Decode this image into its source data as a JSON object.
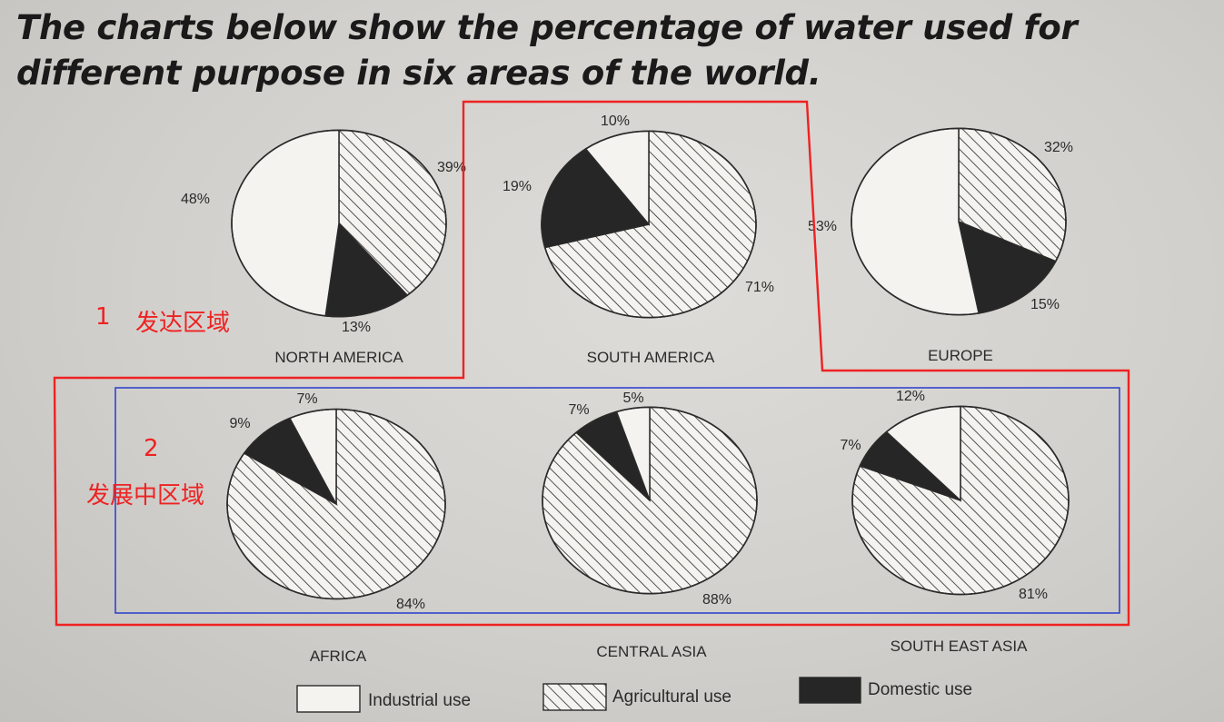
{
  "title": "The charts below show the percentage of water used for different purpose in six areas of the world.",
  "legend": [
    {
      "label": "Industrial use",
      "pattern": "plain",
      "color": "#f4f3f0"
    },
    {
      "label": "Agricultural use",
      "pattern": "hatched",
      "color": "#f4f3f0"
    },
    {
      "label": "Domestic use",
      "pattern": "solid",
      "color": "#262626"
    }
  ],
  "annotations": {
    "group1_number": "1",
    "group1_label": "发达区域",
    "group2_number": "2",
    "group2_label": "发展中区域",
    "box_red": "#ee2222",
    "box_blue": "#3344cc"
  },
  "chart_data": [
    {
      "type": "pie",
      "region": "NORTH AMERICA",
      "categories": [
        "Industrial use",
        "Agricultural use",
        "Domestic use"
      ],
      "values": [
        48,
        39,
        13
      ],
      "labels": [
        "48%",
        "39%",
        "13%"
      ]
    },
    {
      "type": "pie",
      "region": "SOUTH AMERICA",
      "categories": [
        "Industrial use",
        "Agricultural use",
        "Domestic use"
      ],
      "values": [
        10,
        71,
        19
      ],
      "labels": [
        "10%",
        "71%",
        "19%"
      ]
    },
    {
      "type": "pie",
      "region": "EUROPE",
      "categories": [
        "Industrial use",
        "Agricultural use",
        "Domestic use"
      ],
      "values": [
        53,
        32,
        15
      ],
      "labels": [
        "53%",
        "32%",
        "15%"
      ]
    },
    {
      "type": "pie",
      "region": "AFRICA",
      "categories": [
        "Industrial use",
        "Agricultural use",
        "Domestic use"
      ],
      "values": [
        7,
        84,
        9
      ],
      "labels": [
        "7%",
        "84%",
        "9%"
      ]
    },
    {
      "type": "pie",
      "region": "CENTRAL ASIA",
      "categories": [
        "Industrial use",
        "Agricultural use",
        "Domestic use"
      ],
      "values": [
        5,
        88,
        7
      ],
      "labels": [
        "5%",
        "88%",
        "7%"
      ]
    },
    {
      "type": "pie",
      "region": "SOUTH EAST ASIA",
      "categories": [
        "Industrial use",
        "Agricultural use",
        "Domestic use"
      ],
      "values": [
        12,
        81,
        7
      ],
      "labels": [
        "12%",
        "81%",
        "7%"
      ]
    }
  ]
}
